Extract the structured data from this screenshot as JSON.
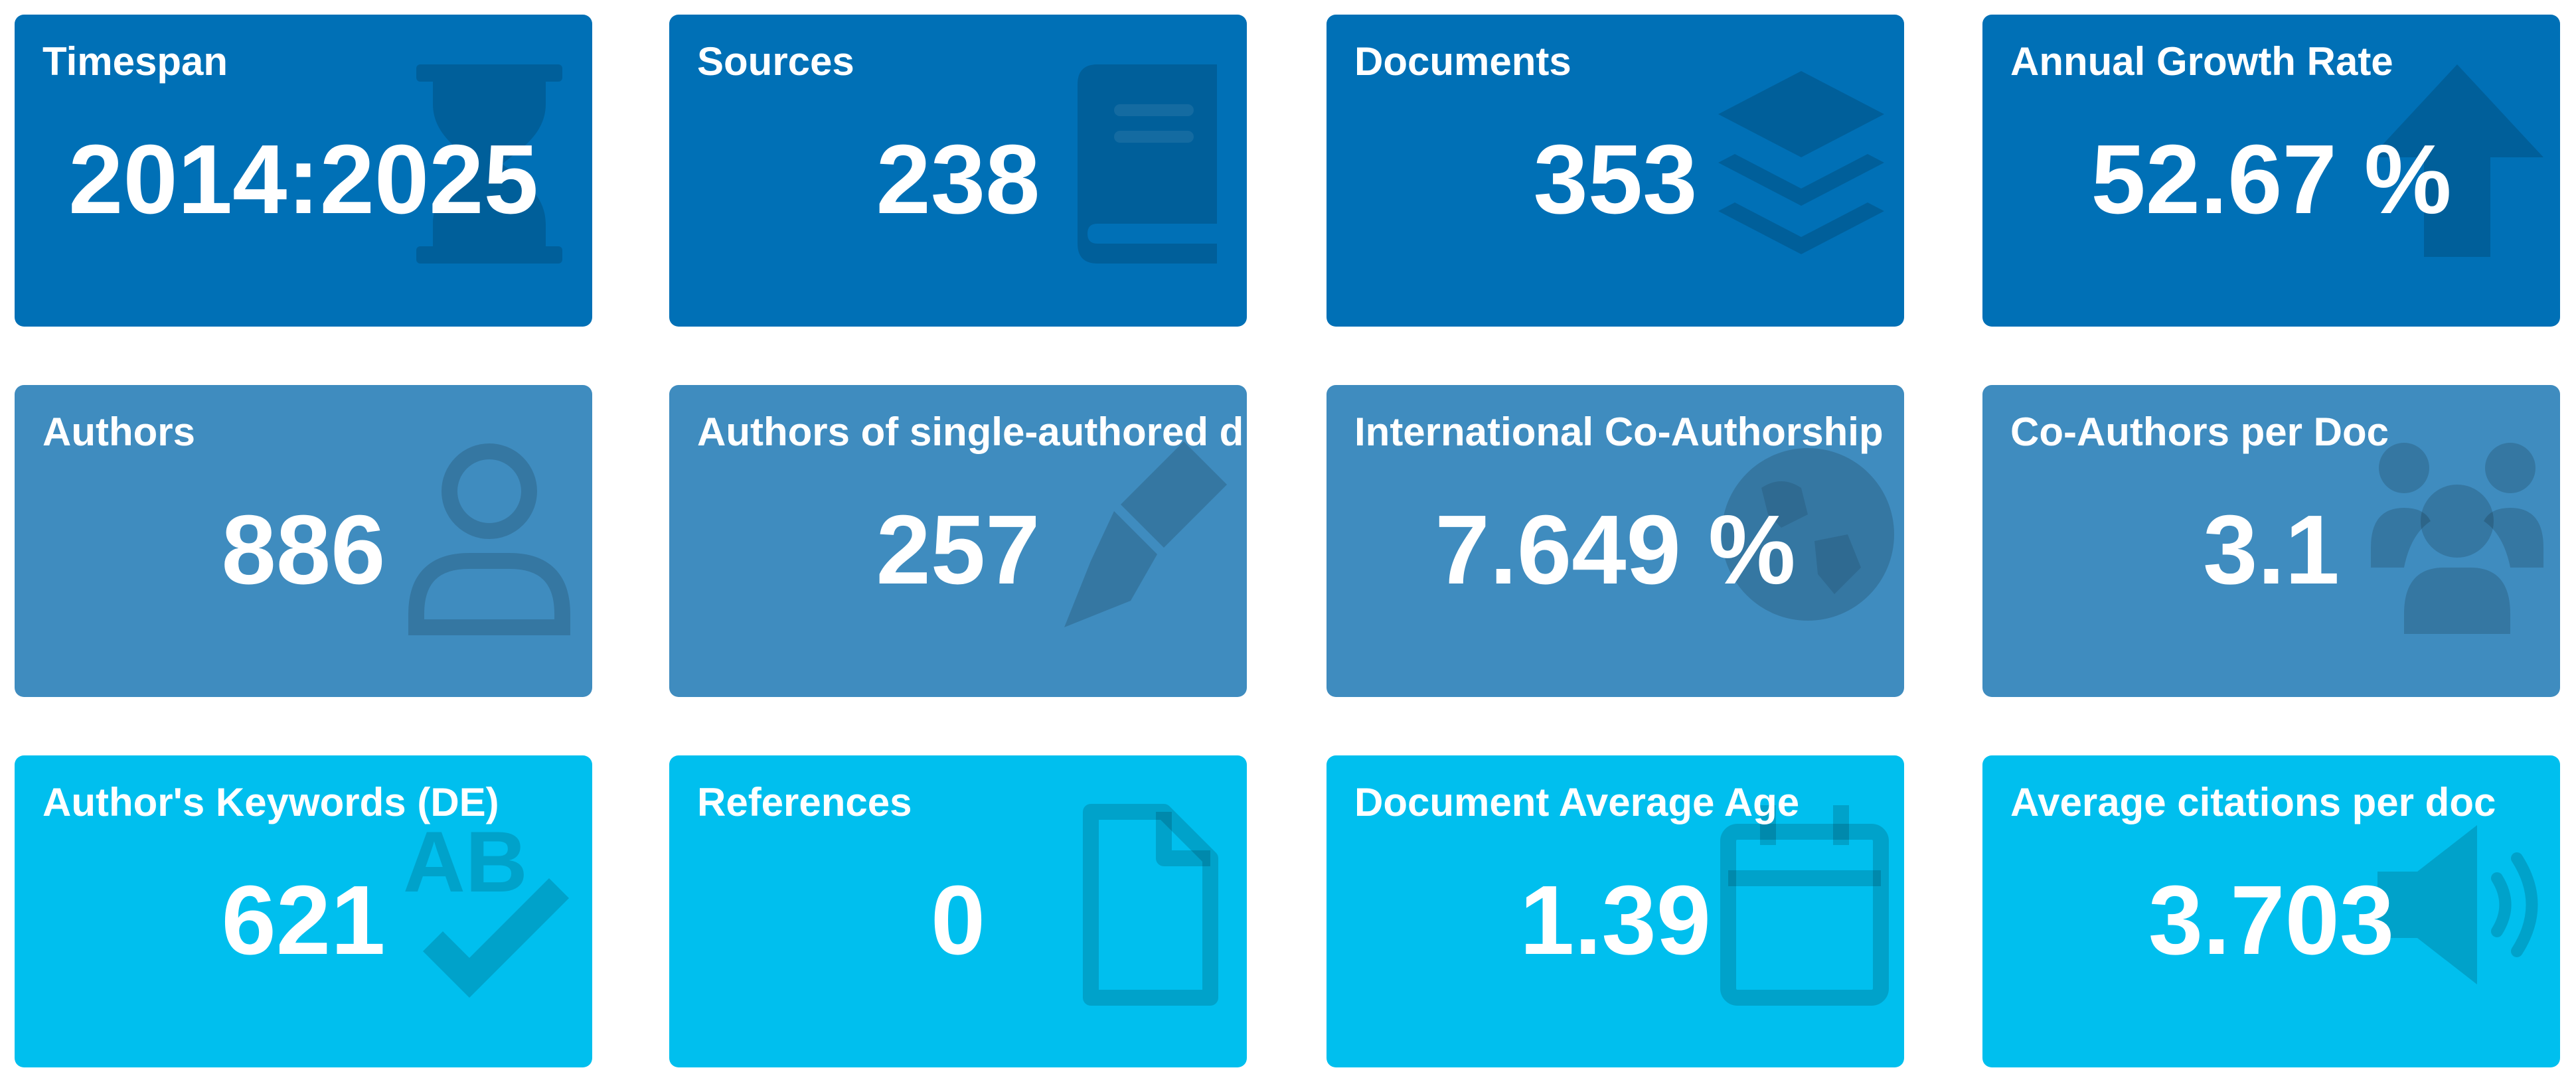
{
  "cards": [
    {
      "label": "Timespan",
      "value": "2014:2025",
      "icon": "hourglass-icon"
    },
    {
      "label": "Sources",
      "value": "238",
      "icon": "book-icon"
    },
    {
      "label": "Documents",
      "value": "353",
      "icon": "layers-icon"
    },
    {
      "label": "Annual Growth Rate",
      "value": "52.67 %",
      "icon": "arrow-up-icon"
    },
    {
      "label": "Authors",
      "value": "886",
      "icon": "user-icon"
    },
    {
      "label": "Authors of single-authored d",
      "value": "257",
      "icon": "pen-nib-icon"
    },
    {
      "label": "International Co-Authorship",
      "value": "7.649 %",
      "icon": "globe-icon"
    },
    {
      "label": "Co-Authors per Doc",
      "value": "3.1",
      "icon": "users-icon"
    },
    {
      "label": "Author's Keywords (DE)",
      "value": "621",
      "icon": "spell-check-icon"
    },
    {
      "label": "References",
      "value": "0",
      "icon": "file-icon"
    },
    {
      "label": "Document Average Age",
      "value": "1.39",
      "icon": "calendar-icon"
    },
    {
      "label": "Average citations per doc",
      "value": "3.703",
      "icon": "volume-icon"
    }
  ],
  "colors": {
    "row_1_bg": "#0070b6",
    "row_2_bg": "#3f8cbf",
    "row_3_bg": "#00bfee",
    "text": "#ffffff"
  }
}
